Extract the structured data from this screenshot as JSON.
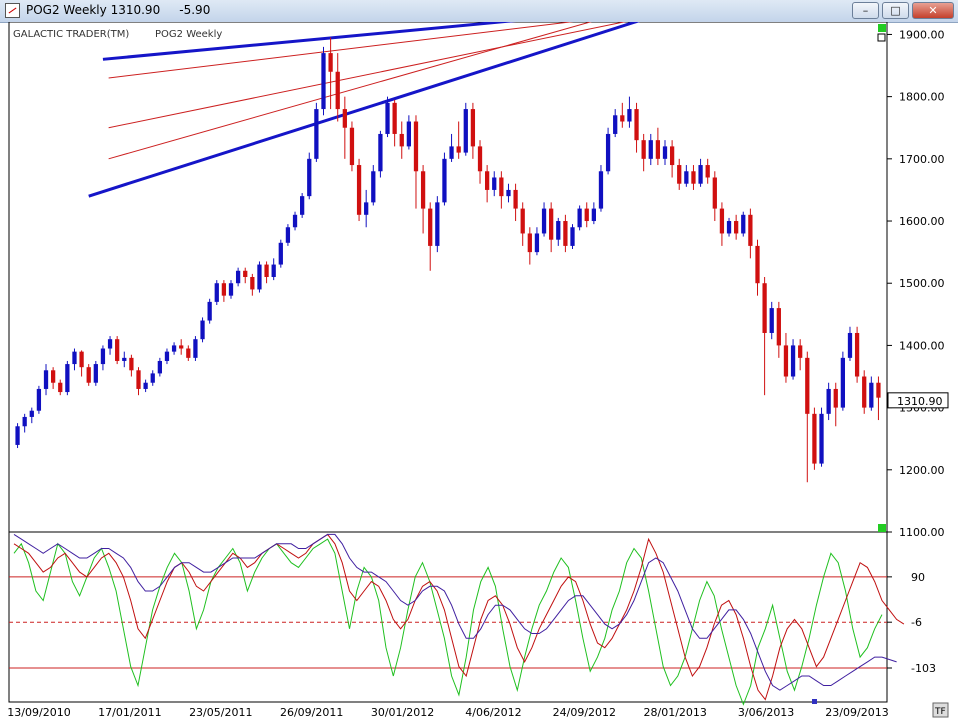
{
  "window": {
    "title_symbol": "POG2 Weekly",
    "title_price": "1310.90",
    "title_change": "-5.90",
    "minimize_label": "–",
    "maximize_label": "□",
    "close_label": "✕"
  },
  "chart_data": [
    {
      "type": "candlestick",
      "brand": "GALACTIC TRADER(TM)",
      "series_name": "POG2 Weekly",
      "last_price": "1310.90",
      "ylim": [
        1100,
        1920
      ],
      "yticks": [
        "1900.00",
        "1800.00",
        "1700.00",
        "1600.00",
        "1500.00",
        "1400.00",
        "1300.00",
        "1200.00",
        "1100.00"
      ],
      "x_labels": [
        "13/09/2010",
        "17/01/2011",
        "23/05/2011",
        "26/09/2011",
        "30/01/2012",
        "4/06/2012",
        "24/09/2012",
        "28/01/2013",
        "3/06/2013",
        "23/09/2013"
      ],
      "up_color": "#1010c0",
      "down_color": "#d01010",
      "channel_color": "#1515c8",
      "midline_color": "#cc2020",
      "candles": [
        [
          1240,
          1270,
          1235,
          1275
        ],
        [
          1270,
          1285,
          1260,
          1290
        ],
        [
          1285,
          1295,
          1275,
          1300
        ],
        [
          1295,
          1330,
          1290,
          1335
        ],
        [
          1330,
          1360,
          1320,
          1370
        ],
        [
          1360,
          1340,
          1330,
          1365
        ],
        [
          1340,
          1325,
          1320,
          1345
        ],
        [
          1325,
          1370,
          1320,
          1375
        ],
        [
          1370,
          1390,
          1360,
          1395
        ],
        [
          1390,
          1365,
          1350,
          1392
        ],
        [
          1365,
          1340,
          1335,
          1370
        ],
        [
          1340,
          1370,
          1335,
          1375
        ],
        [
          1370,
          1395,
          1360,
          1400
        ],
        [
          1395,
          1410,
          1385,
          1415
        ],
        [
          1410,
          1375,
          1370,
          1415
        ],
        [
          1375,
          1380,
          1365,
          1390
        ],
        [
          1380,
          1360,
          1350,
          1385
        ],
        [
          1360,
          1330,
          1320,
          1365
        ],
        [
          1330,
          1340,
          1325,
          1345
        ],
        [
          1340,
          1355,
          1335,
          1360
        ],
        [
          1355,
          1375,
          1350,
          1380
        ],
        [
          1375,
          1390,
          1370,
          1395
        ],
        [
          1390,
          1400,
          1385,
          1405
        ],
        [
          1400,
          1395,
          1385,
          1410
        ],
        [
          1395,
          1380,
          1375,
          1400
        ],
        [
          1380,
          1410,
          1375,
          1415
        ],
        [
          1410,
          1440,
          1405,
          1445
        ],
        [
          1440,
          1470,
          1435,
          1475
        ],
        [
          1470,
          1500,
          1465,
          1505
        ],
        [
          1500,
          1480,
          1470,
          1505
        ],
        [
          1480,
          1500,
          1475,
          1505
        ],
        [
          1500,
          1520,
          1495,
          1525
        ],
        [
          1520,
          1510,
          1500,
          1525
        ],
        [
          1510,
          1490,
          1480,
          1515
        ],
        [
          1490,
          1530,
          1485,
          1535
        ],
        [
          1530,
          1510,
          1500,
          1535
        ],
        [
          1510,
          1530,
          1505,
          1540
        ],
        [
          1530,
          1565,
          1525,
          1570
        ],
        [
          1565,
          1590,
          1560,
          1595
        ],
        [
          1590,
          1610,
          1585,
          1615
        ],
        [
          1610,
          1640,
          1605,
          1645
        ],
        [
          1640,
          1700,
          1635,
          1710
        ],
        [
          1700,
          1780,
          1695,
          1790
        ],
        [
          1780,
          1870,
          1770,
          1880
        ],
        [
          1870,
          1840,
          1780,
          1895
        ],
        [
          1840,
          1780,
          1760,
          1870
        ],
        [
          1780,
          1750,
          1700,
          1800
        ],
        [
          1750,
          1690,
          1680,
          1760
        ],
        [
          1690,
          1610,
          1600,
          1700
        ],
        [
          1610,
          1630,
          1590,
          1650
        ],
        [
          1630,
          1680,
          1625,
          1690
        ],
        [
          1680,
          1740,
          1670,
          1745
        ],
        [
          1740,
          1790,
          1735,
          1800
        ],
        [
          1790,
          1740,
          1720,
          1795
        ],
        [
          1740,
          1720,
          1700,
          1760
        ],
        [
          1720,
          1760,
          1715,
          1770
        ],
        [
          1760,
          1680,
          1620,
          1770
        ],
        [
          1680,
          1620,
          1580,
          1690
        ],
        [
          1620,
          1560,
          1520,
          1630
        ],
        [
          1560,
          1630,
          1550,
          1640
        ],
        [
          1630,
          1700,
          1625,
          1710
        ],
        [
          1700,
          1720,
          1695,
          1740
        ],
        [
          1720,
          1710,
          1700,
          1760
        ],
        [
          1710,
          1780,
          1705,
          1790
        ],
        [
          1780,
          1720,
          1700,
          1790
        ],
        [
          1720,
          1680,
          1660,
          1730
        ],
        [
          1680,
          1650,
          1630,
          1690
        ],
        [
          1650,
          1670,
          1640,
          1680
        ],
        [
          1670,
          1640,
          1620,
          1680
        ],
        [
          1640,
          1650,
          1630,
          1660
        ],
        [
          1650,
          1620,
          1600,
          1660
        ],
        [
          1620,
          1580,
          1560,
          1630
        ],
        [
          1580,
          1550,
          1530,
          1590
        ],
        [
          1550,
          1580,
          1545,
          1590
        ],
        [
          1580,
          1620,
          1575,
          1630
        ],
        [
          1620,
          1570,
          1550,
          1630
        ],
        [
          1570,
          1600,
          1560,
          1605
        ],
        [
          1600,
          1560,
          1550,
          1610
        ],
        [
          1560,
          1590,
          1555,
          1595
        ],
        [
          1590,
          1620,
          1585,
          1625
        ],
        [
          1620,
          1600,
          1590,
          1630
        ],
        [
          1600,
          1620,
          1595,
          1630
        ],
        [
          1620,
          1680,
          1615,
          1690
        ],
        [
          1680,
          1740,
          1675,
          1750
        ],
        [
          1740,
          1770,
          1735,
          1780
        ],
        [
          1770,
          1760,
          1750,
          1790
        ],
        [
          1760,
          1780,
          1750,
          1800
        ],
        [
          1780,
          1730,
          1710,
          1790
        ],
        [
          1730,
          1700,
          1680,
          1740
        ],
        [
          1700,
          1730,
          1690,
          1740
        ],
        [
          1730,
          1700,
          1690,
          1750
        ],
        [
          1700,
          1720,
          1690,
          1730
        ],
        [
          1720,
          1690,
          1670,
          1730
        ],
        [
          1690,
          1660,
          1650,
          1700
        ],
        [
          1660,
          1680,
          1655,
          1690
        ],
        [
          1680,
          1660,
          1650,
          1690
        ],
        [
          1660,
          1690,
          1655,
          1700
        ],
        [
          1690,
          1670,
          1660,
          1700
        ],
        [
          1670,
          1620,
          1600,
          1680
        ],
        [
          1620,
          1580,
          1560,
          1630
        ],
        [
          1580,
          1600,
          1575,
          1605
        ],
        [
          1600,
          1580,
          1570,
          1610
        ],
        [
          1580,
          1610,
          1575,
          1615
        ],
        [
          1610,
          1560,
          1540,
          1620
        ],
        [
          1560,
          1500,
          1480,
          1570
        ],
        [
          1500,
          1420,
          1320,
          1510
        ],
        [
          1420,
          1460,
          1410,
          1470
        ],
        [
          1460,
          1400,
          1380,
          1470
        ],
        [
          1400,
          1350,
          1340,
          1420
        ],
        [
          1350,
          1400,
          1345,
          1410
        ],
        [
          1400,
          1380,
          1360,
          1410
        ],
        [
          1380,
          1290,
          1180,
          1390
        ],
        [
          1290,
          1210,
          1200,
          1300
        ],
        [
          1210,
          1290,
          1205,
          1300
        ],
        [
          1290,
          1330,
          1280,
          1340
        ],
        [
          1330,
          1300,
          1270,
          1340
        ],
        [
          1300,
          1380,
          1295,
          1390
        ],
        [
          1380,
          1420,
          1375,
          1430
        ],
        [
          1420,
          1350,
          1340,
          1430
        ],
        [
          1350,
          1300,
          1290,
          1360
        ],
        [
          1300,
          1340,
          1295,
          1350
        ],
        [
          1340,
          1316,
          1280,
          1350
        ]
      ],
      "channel": {
        "upper": [
          [
            1860,
            1990
          ],
          [
            120,
            1330
          ]
        ],
        "lower": [
          [
            1640,
            1990
          ],
          [
            100,
            1060
          ]
        ],
        "red_lines": [
          [
            [
              1830,
              1990
            ],
            [
              128,
              1280
            ]
          ],
          [
            [
              1750,
              1990
            ],
            [
              128,
              1150
            ]
          ],
          [
            [
              1700,
              1990
            ],
            [
              128,
              1020
            ]
          ]
        ]
      }
    },
    {
      "type": "line",
      "ylim": [
        -175,
        185
      ],
      "yticks": [
        "90",
        "-6",
        "-103"
      ],
      "ref_lines": [
        90,
        -6,
        -103
      ],
      "series_colors": [
        "#20c020",
        "#c01010",
        "#4020a0"
      ],
      "series": [
        {
          "values": [
            140,
            160,
            120,
            60,
            40,
            100,
            160,
            140,
            80,
            50,
            90,
            130,
            150,
            110,
            60,
            -20,
            -100,
            -140,
            -60,
            20,
            70,
            110,
            140,
            120,
            60,
            -20,
            20,
            80,
            110,
            130,
            150,
            120,
            60,
            100,
            130,
            150,
            160,
            140,
            120,
            110,
            130,
            150,
            160,
            170,
            140,
            60,
            -20,
            60,
            110,
            90,
            40,
            -60,
            -120,
            -60,
            20,
            90,
            120,
            80,
            20,
            -40,
            -120,
            -160,
            -80,
            20,
            80,
            110,
            70,
            -20,
            -100,
            -150,
            -80,
            -20,
            30,
            60,
            100,
            130,
            110,
            40,
            -40,
            -110,
            -80,
            -40,
            20,
            60,
            120,
            150,
            130,
            60,
            -20,
            -100,
            -140,
            -120,
            -80,
            -20,
            40,
            80,
            50,
            -20,
            -80,
            -140,
            -180,
            -140,
            -60,
            -20,
            30,
            -40,
            -110,
            -150,
            -100,
            -40,
            30,
            90,
            140,
            120,
            60,
            -20,
            -80,
            -60,
            -20,
            10
          ]
        },
        {
          "values": [
            160,
            150,
            140,
            120,
            100,
            110,
            130,
            140,
            120,
            100,
            90,
            110,
            130,
            140,
            120,
            90,
            40,
            -20,
            -40,
            0,
            40,
            80,
            110,
            120,
            100,
            70,
            60,
            80,
            100,
            120,
            140,
            130,
            110,
            120,
            140,
            150,
            160,
            150,
            140,
            130,
            140,
            160,
            170,
            180,
            160,
            120,
            60,
            40,
            60,
            80,
            70,
            40,
            0,
            -20,
            0,
            40,
            70,
            80,
            60,
            20,
            -40,
            -100,
            -120,
            -60,
            0,
            40,
            50,
            30,
            -10,
            -60,
            -90,
            -60,
            -20,
            10,
            40,
            70,
            90,
            80,
            40,
            -10,
            -50,
            -60,
            -40,
            -10,
            20,
            60,
            110,
            170,
            140,
            100,
            40,
            -20,
            -80,
            -120,
            -100,
            -60,
            -10,
            30,
            40,
            10,
            -40,
            -100,
            -150,
            -170,
            -120,
            -60,
            -20,
            0,
            -20,
            -60,
            -100,
            -80,
            -40,
            0,
            40,
            80,
            120,
            110,
            80,
            40,
            20,
            0,
            -10
          ]
        },
        {
          "values": [
            180,
            170,
            160,
            150,
            140,
            150,
            160,
            150,
            140,
            130,
            130,
            140,
            150,
            150,
            140,
            130,
            110,
            80,
            60,
            60,
            70,
            90,
            110,
            120,
            120,
            110,
            100,
            100,
            110,
            120,
            130,
            130,
            130,
            130,
            140,
            150,
            160,
            160,
            160,
            150,
            150,
            160,
            170,
            180,
            180,
            160,
            130,
            110,
            100,
            100,
            90,
            80,
            60,
            40,
            30,
            40,
            60,
            70,
            70,
            60,
            30,
            -10,
            -40,
            -40,
            -20,
            10,
            30,
            30,
            20,
            0,
            -20,
            -30,
            -30,
            -20,
            0,
            20,
            40,
            50,
            50,
            30,
            10,
            -10,
            -20,
            -10,
            10,
            40,
            80,
            120,
            130,
            120,
            90,
            60,
            20,
            -20,
            -40,
            -40,
            -20,
            0,
            20,
            20,
            0,
            -30,
            -70,
            -110,
            -140,
            -150,
            -140,
            -130,
            -120,
            -120,
            -130,
            -140,
            -140,
            -130,
            -120,
            -110,
            -100,
            -90,
            -80,
            -80,
            -85,
            -90
          ]
        }
      ]
    }
  ]
}
